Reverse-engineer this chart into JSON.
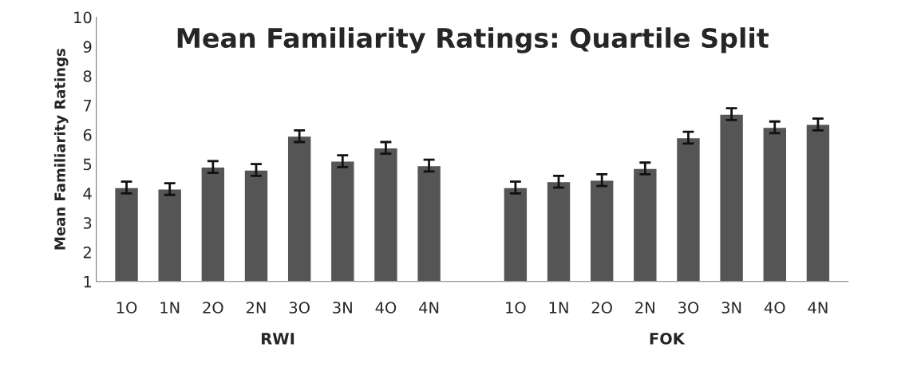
{
  "chart_data": {
    "type": "bar",
    "title": "Mean Familiarity Ratings: Quartile Split",
    "ylabel": "Mean Familiarity Ratings",
    "categories": [
      "1O",
      "1N",
      "2O",
      "2N",
      "3O",
      "3N",
      "4O",
      "4N",
      null,
      "1O",
      "1N",
      "2O",
      "2N",
      "3O",
      "3N",
      "4O",
      "4N"
    ],
    "values": [
      4.2,
      4.15,
      4.9,
      4.8,
      5.95,
      5.1,
      5.55,
      4.95,
      null,
      4.2,
      4.4,
      4.45,
      4.85,
      5.9,
      6.7,
      6.25,
      6.35
    ],
    "errors": [
      0.2,
      0.2,
      0.2,
      0.2,
      0.2,
      0.2,
      0.2,
      0.2,
      null,
      0.2,
      0.2,
      0.2,
      0.2,
      0.2,
      0.2,
      0.2,
      0.2
    ],
    "color": "#555555",
    "annotations": [
      "RWI",
      "FOK"
    ],
    "ylim": [
      1,
      10
    ],
    "yticks": [
      1,
      2,
      3,
      4,
      5,
      6,
      7,
      8,
      9,
      10
    ],
    "grid": false
  }
}
